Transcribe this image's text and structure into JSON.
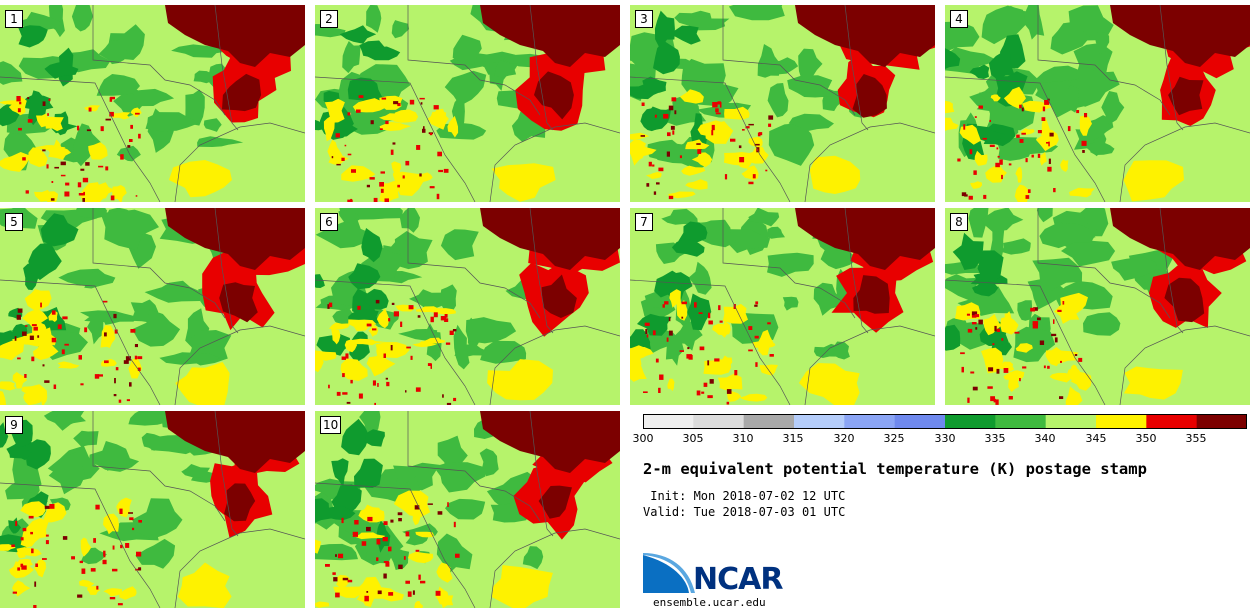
{
  "figure": {
    "title": "2-m equivalent potential temperature (K) postage stamp",
    "init": " Init: Mon 2018-07-02 12 UTC",
    "valid": "Valid: Tue 2018-07-03 01 UTC",
    "website": "ensemble.ucar.edu",
    "logo_text": "NCAR"
  },
  "members": [
    "1",
    "2",
    "3",
    "4",
    "5",
    "6",
    "7",
    "8",
    "9",
    "10"
  ],
  "colorbar": {
    "units": "K",
    "ticks": [
      "300",
      "305",
      "310",
      "315",
      "320",
      "325",
      "330",
      "335",
      "340",
      "345",
      "350",
      "355"
    ],
    "bins": [
      {
        "min": 300,
        "max": 305,
        "color": "#efefef"
      },
      {
        "min": 305,
        "max": 310,
        "color": "#dcdcdc"
      },
      {
        "min": 310,
        "max": 315,
        "color": "#a9a9a9"
      },
      {
        "min": 315,
        "max": 320,
        "color": "#b5cdfa"
      },
      {
        "min": 320,
        "max": 325,
        "color": "#8ba5f5"
      },
      {
        "min": 325,
        "max": 330,
        "color": "#6f89ee"
      },
      {
        "min": 330,
        "max": 335,
        "color": "#0f9b2e"
      },
      {
        "min": 335,
        "max": 340,
        "color": "#3fba3f"
      },
      {
        "min": 340,
        "max": 345,
        "color": "#b6f36b"
      },
      {
        "min": 345,
        "max": 350,
        "color": "#fef200"
      },
      {
        "min": 350,
        "max": 355,
        "color": "#e80000"
      },
      {
        "min": 355,
        "max": 360,
        "color": "#7c0000"
      }
    ]
  },
  "colors": {
    "dark_green": "#0f9b2e",
    "green": "#3fba3f",
    "light_green": "#b6f36b",
    "yellow": "#fef200",
    "red": "#e80000",
    "dark_red": "#7c0000",
    "boundary": "#555555",
    "logo_blue": "#00317f"
  }
}
